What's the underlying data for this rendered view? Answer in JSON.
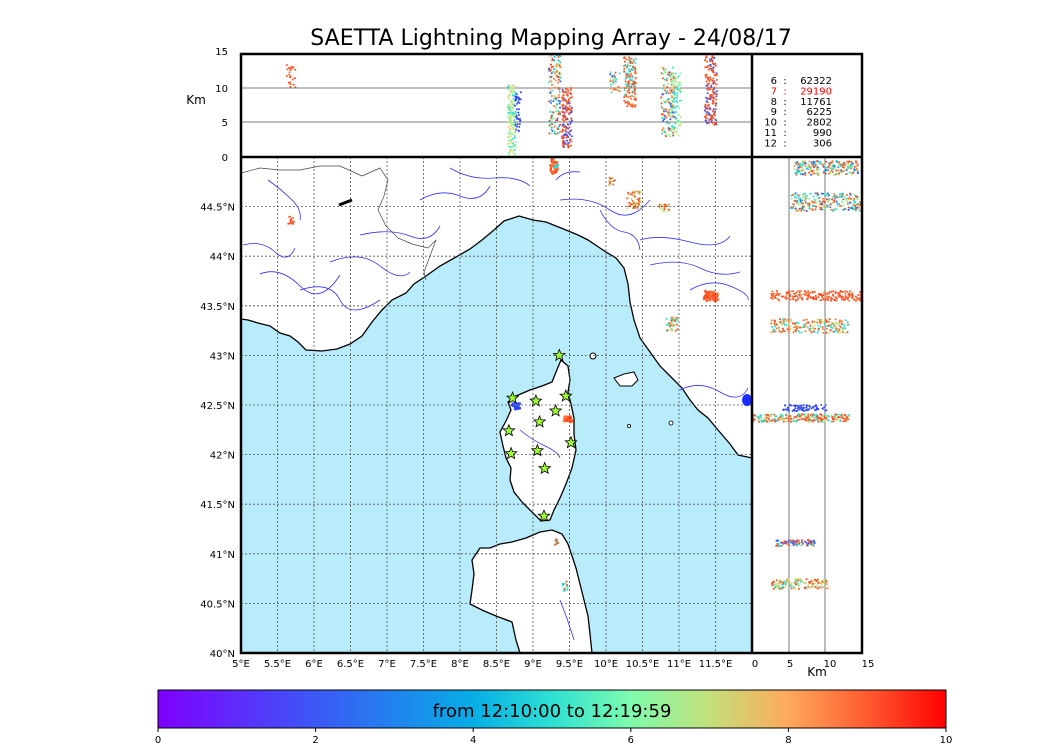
{
  "title": "SAETTA Lightning Mapping Array - 24/08/17",
  "top_panel": {
    "ylabel": "Km",
    "yticks": [
      "15",
      "10",
      "5",
      "0"
    ],
    "counts": [
      {
        "station": "6",
        "sep": ":",
        "value": "62322",
        "color": "#000000"
      },
      {
        "station": "7",
        "sep": ":",
        "value": "29190",
        "color": "#ff0000"
      },
      {
        "station": "8",
        "sep": ":",
        "value": "11761",
        "color": "#000000"
      },
      {
        "station": "9",
        "sep": ":",
        "value": "6225",
        "color": "#000000"
      },
      {
        "station": "10",
        "sep": ":",
        "value": "2802",
        "color": "#000000"
      },
      {
        "station": "11",
        "sep": ":",
        "value": "990",
        "color": "#000000"
      },
      {
        "station": "12",
        "sep": ":",
        "value": "306",
        "color": "#000000"
      }
    ]
  },
  "map": {
    "lon_ticks": [
      "5°E",
      "5.5°E",
      "6°E",
      "6.5°E",
      "7°E",
      "7.5°E",
      "8°E",
      "8.5°E",
      "9°E",
      "9.5°E",
      "10°E",
      "10.5°E",
      "11°E",
      "11.5°E"
    ],
    "lat_ticks": [
      "44.5°N",
      "44°N",
      "43.5°N",
      "43°N",
      "42.5°N",
      "42°N",
      "41.5°N",
      "41°N",
      "40.5°N",
      "40°N"
    ],
    "lon_range": [
      5,
      12
    ],
    "lat_range": [
      40,
      45
    ],
    "sea_color": "#b8ecfb",
    "land_color": "#ffffff",
    "stations": [
      {
        "lon": 9.36,
        "lat": 43.0
      },
      {
        "lon": 8.72,
        "lat": 42.57
      },
      {
        "lon": 9.04,
        "lat": 42.54
      },
      {
        "lon": 9.45,
        "lat": 42.59
      },
      {
        "lon": 9.31,
        "lat": 42.44
      },
      {
        "lon": 9.09,
        "lat": 42.33
      },
      {
        "lon": 8.67,
        "lat": 42.24
      },
      {
        "lon": 9.52,
        "lat": 42.12
      },
      {
        "lon": 9.06,
        "lat": 42.04
      },
      {
        "lon": 8.7,
        "lat": 42.01
      },
      {
        "lon": 9.16,
        "lat": 41.86
      },
      {
        "lon": 9.15,
        "lat": 41.38
      }
    ]
  },
  "right_panel": {
    "xlabel": "Km",
    "xticks": [
      "0",
      "5",
      "10",
      "15"
    ]
  },
  "colorbar": {
    "label": "from 12:10:00 to 12:19:59",
    "ticks": [
      "0",
      "2",
      "4",
      "6",
      "8",
      "10"
    ],
    "range": [
      0,
      10
    ]
  }
}
